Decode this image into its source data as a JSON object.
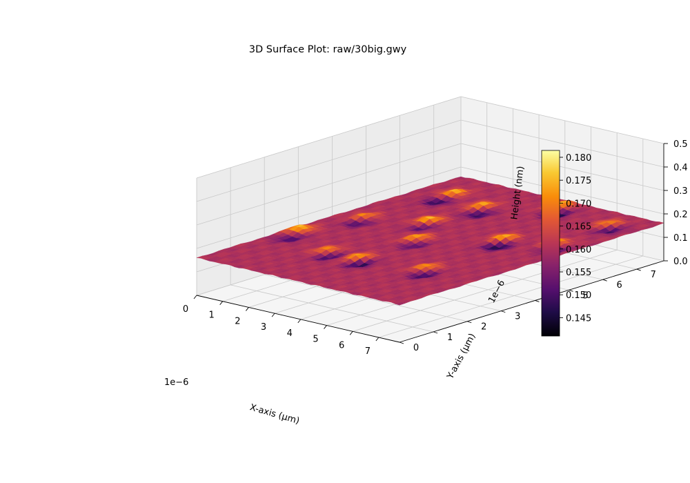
{
  "chart_data": {
    "type": "surface3d",
    "title": "3D Surface Plot: raw/30big.gwy",
    "xlabel": "X-axis (μm)",
    "ylabel": "Y-axis (μm)",
    "zlabel": "Height (nm)",
    "x_offset_text": "1e−6",
    "y_offset_text": "1e−6",
    "xticks": [
      "0",
      "1",
      "2",
      "3",
      "4",
      "5",
      "6",
      "7"
    ],
    "yticks": [
      "0",
      "1",
      "2",
      "3",
      "4",
      "5",
      "6",
      "7"
    ],
    "zticks": [
      "0.0",
      "0.1",
      "0.2",
      "0.3",
      "0.4",
      "0.5"
    ],
    "xlim": [
      0,
      7.8
    ],
    "ylim": [
      0,
      7.8
    ],
    "zlim": [
      0,
      0.5
    ],
    "colormap": "inferno",
    "colorbar": {
      "ticks": [
        "0.145",
        "0.150",
        "0.155",
        "0.160",
        "0.165",
        "0.170",
        "0.175",
        "0.180"
      ],
      "range": [
        0.141,
        0.1815
      ]
    },
    "surface": {
      "baseline": 0.16,
      "features": [
        {
          "x": 1.1,
          "y": 6.7,
          "height": 0.178
        },
        {
          "x": 1.2,
          "y": 6.2,
          "height": 0.145
        },
        {
          "x": 4.3,
          "y": 7.4,
          "height": 0.179
        },
        {
          "x": 4.7,
          "y": 7.0,
          "height": 0.143
        },
        {
          "x": 2.6,
          "y": 6.4,
          "height": 0.176
        },
        {
          "x": 3.0,
          "y": 6.0,
          "height": 0.146
        },
        {
          "x": 0.8,
          "y": 4.3,
          "height": 0.175
        },
        {
          "x": 1.0,
          "y": 4.0,
          "height": 0.146
        },
        {
          "x": 2.5,
          "y": 4.9,
          "height": 0.181
        },
        {
          "x": 2.7,
          "y": 4.6,
          "height": 0.147
        },
        {
          "x": 3.5,
          "y": 3.8,
          "height": 0.177
        },
        {
          "x": 3.8,
          "y": 3.5,
          "height": 0.148
        },
        {
          "x": 5.4,
          "y": 4.9,
          "height": 0.178
        },
        {
          "x": 5.7,
          "y": 4.5,
          "height": 0.142
        },
        {
          "x": 6.9,
          "y": 5.3,
          "height": 0.175
        },
        {
          "x": 7.2,
          "y": 5.0,
          "height": 0.147
        },
        {
          "x": 6.7,
          "y": 7.0,
          "height": 0.176
        },
        {
          "x": 7.0,
          "y": 6.8,
          "height": 0.145
        },
        {
          "x": 2.4,
          "y": 2.0,
          "height": 0.176
        },
        {
          "x": 2.7,
          "y": 1.8,
          "height": 0.145
        },
        {
          "x": 3.6,
          "y": 2.0,
          "height": 0.18
        },
        {
          "x": 3.9,
          "y": 1.8,
          "height": 0.141
        },
        {
          "x": 5.8,
          "y": 2.3,
          "height": 0.176
        },
        {
          "x": 6.1,
          "y": 2.0,
          "height": 0.145
        },
        {
          "x": 0.3,
          "y": 2.8,
          "height": 0.178
        },
        {
          "x": 0.6,
          "y": 2.3,
          "height": 0.148
        }
      ]
    }
  }
}
